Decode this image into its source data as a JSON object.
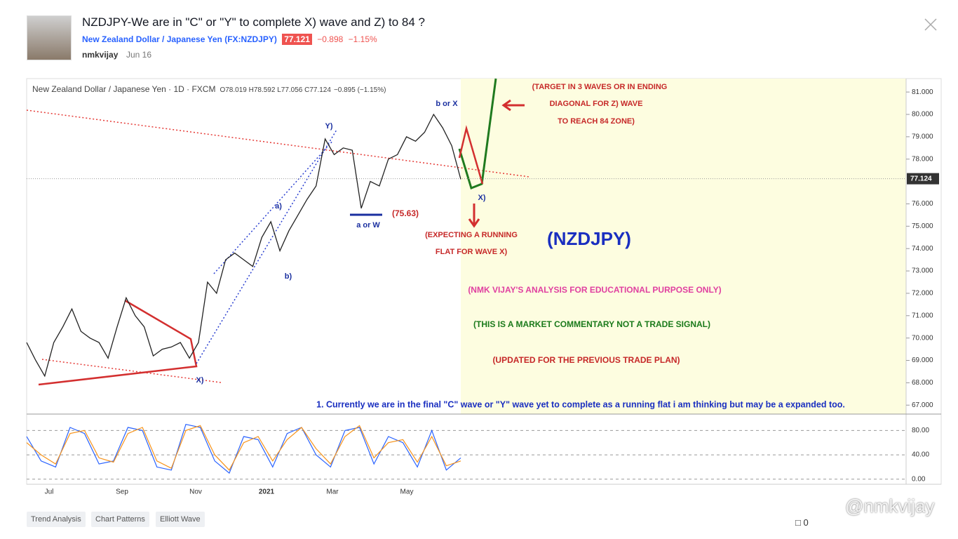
{
  "header": {
    "title": "NZDJPY-We are in \"C\" or \"Y\" to complete X) wave and Z) to 84 ?",
    "symbol": "New Zealand Dollar / Japanese Yen (FX:NZDJPY)",
    "price": "77.121",
    "change": "−0.898",
    "change_pct": "−1.15%",
    "author": "nmkvijay",
    "date": "Jun 16"
  },
  "chart_data": {
    "type": "line",
    "legend": {
      "name": "New Zealand Dollar / Japanese Yen · 1D · FXCM",
      "ohlc": "O78.019 H78.592 L77.056 C77.124",
      "change": "−0.895 (−1.15%)"
    },
    "x_labels": [
      "Jul",
      "Sep",
      "Nov",
      "2021",
      "Mar",
      "May"
    ],
    "closes": [
      69.8,
      69.0,
      68.3,
      69.8,
      70.5,
      71.3,
      70.3,
      70.0,
      69.8,
      69.1,
      70.5,
      71.8,
      71.0,
      70.5,
      69.2,
      69.5,
      69.6,
      69.8,
      69.1,
      69.8,
      72.5,
      72.0,
      73.5,
      73.8,
      73.5,
      73.2,
      74.5,
      75.2,
      73.9,
      74.8,
      75.5,
      76.2,
      76.8,
      78.9,
      78.2,
      78.5,
      78.4,
      75.8,
      77.0,
      76.8,
      78.0,
      78.2,
      79.0,
      78.8,
      79.2,
      80.0,
      79.4,
      78.6,
      77.1
    ],
    "color": "#222222",
    "ylim": [
      66.6,
      81.6
    ],
    "yticks": [
      {
        "value": 81,
        "label": "81.000"
      },
      {
        "value": 80,
        "label": "80.000"
      },
      {
        "value": 79,
        "label": "79.000"
      },
      {
        "value": 78,
        "label": "78.000"
      },
      {
        "value": 76,
        "label": "76.000"
      },
      {
        "value": 75,
        "label": "75.000"
      },
      {
        "value": 74,
        "label": "74.000"
      },
      {
        "value": 73,
        "label": "73.000"
      },
      {
        "value": 72,
        "label": "72.000"
      },
      {
        "value": 71,
        "label": "71.000"
      },
      {
        "value": 70,
        "label": "70.000"
      },
      {
        "value": 69,
        "label": "69.000"
      },
      {
        "value": 68,
        "label": "68.000"
      },
      {
        "value": 67,
        "label": "67.000"
      }
    ],
    "last_price": {
      "value": 77.124,
      "label": "77.124"
    },
    "oscillator": {
      "ylim": [
        -6,
        100
      ],
      "yticks": [
        {
          "value": 80,
          "label": "80.00"
        },
        {
          "value": 40,
          "label": "40.00"
        },
        {
          "value": 0,
          "label": "0.00"
        }
      ],
      "series": [
        {
          "color": "#2962ff",
          "values": [
            70,
            30,
            20,
            85,
            75,
            25,
            30,
            85,
            80,
            20,
            15,
            90,
            85,
            30,
            10,
            70,
            65,
            20,
            75,
            85,
            40,
            20,
            80,
            85,
            25,
            70,
            60,
            20,
            80,
            15,
            35
          ]
        },
        {
          "color": "#f7931a",
          "values": [
            60,
            40,
            25,
            75,
            80,
            35,
            28,
            75,
            85,
            30,
            18,
            80,
            88,
            40,
            15,
            60,
            70,
            30,
            65,
            85,
            50,
            25,
            70,
            88,
            35,
            60,
            65,
            28,
            70,
            22,
            30
          ]
        }
      ]
    },
    "annotations": [
      {
        "text": "b or X",
        "color": "#1a2fa0"
      },
      {
        "text": "Y)",
        "color": "#1a2fa0"
      },
      {
        "text": "a)",
        "color": "#1a2fa0"
      },
      {
        "text": "b)",
        "color": "#1a2fa0"
      },
      {
        "text": "a or W",
        "color": "#1a2fa0"
      },
      {
        "text": "(75.63)",
        "color": "#c62828"
      },
      {
        "text": "X)",
        "color": "#1a2fa0"
      },
      {
        "text": "X)",
        "color": "#1a2fa0"
      },
      {
        "text": "(TARGET IN 3 WAVES OR IN ENDING",
        "color": "#c62828"
      },
      {
        "text": "DIAGONAL FOR Z) WAVE",
        "color": "#c62828"
      },
      {
        "text": "TO REACH 84 ZONE)",
        "color": "#c62828"
      },
      {
        "text": "(EXPECTING A RUNNING",
        "color": "#c62828"
      },
      {
        "text": "FLAT FOR WAVE X)",
        "color": "#c62828"
      },
      {
        "text": "(NZDJPY)",
        "color": "#1a2fc0"
      },
      {
        "text": "(NMK VIJAY'S ANALYSIS FOR EDUCATIONAL PURPOSE ONLY)",
        "color": "#e040a0"
      },
      {
        "text": "(THIS IS A MARKET COMMENTARY NOT A TRADE SIGNAL)",
        "color": "#1b7a1b"
      },
      {
        "text": "(UPDATED FOR THE PREVIOUS TRADE PLAN)",
        "color": "#c62828"
      },
      {
        "text": "1. Currently we are in the final \"C\" wave or \"Y\" wave yet to complete as a running flat i am thinking but may be a expanded too.",
        "color": "#1a2fc0"
      }
    ]
  },
  "tags": [
    "Trend Analysis",
    "Chart Patterns",
    "Elliott Wave"
  ],
  "footer": {
    "comments": "0",
    "watermark": "@nmkvijay"
  }
}
